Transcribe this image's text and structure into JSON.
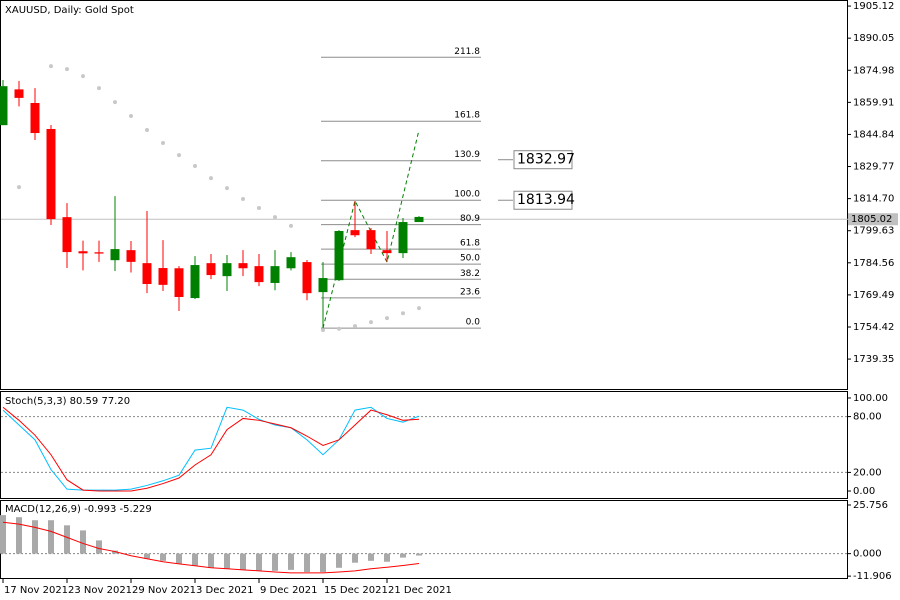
{
  "chart_data": [
    {
      "type": "candlestick",
      "title": "XAUUSD, Daily:  Gold Spot",
      "categories": [
        "17 Nov 2021",
        null,
        null,
        null,
        "23 Nov 2021",
        null,
        null,
        null,
        "29 Nov 2021",
        null,
        null,
        null,
        "3 Dec 2021",
        null,
        null,
        null,
        "9 Dec 2021",
        null,
        null,
        null,
        "15 Dec 2021",
        null,
        null,
        null,
        "21 Dec 2021",
        null,
        null
      ],
      "open": [
        1849.2,
        1866,
        1859.6,
        1847.4,
        1806,
        1790,
        1789.5,
        1785.8,
        1790.5,
        1784.4,
        1782.1,
        1782,
        1768,
        1784.4,
        1778.3,
        1784.4,
        1783,
        1775.1,
        1782,
        1784.9,
        1770.8,
        1776.4,
        1799.9,
        1799.9,
        1790.5,
        1789.1,
        1803.7
      ],
      "high": [
        1870.4,
        1870,
        1866.6,
        1849.3,
        1812.6,
        1795,
        1795,
        1815.9,
        1794.8,
        1808.9,
        1795.2,
        1783,
        1787.7,
        1788.7,
        1788.2,
        1790.5,
        1788.7,
        1790.5,
        1789.6,
        1785.9,
        1784.9,
        1799.9,
        1813.6,
        1800.9,
        1799.5,
        1805.6,
        1806.5
      ],
      "low": [
        1849.2,
        1858,
        1842.2,
        1802.3,
        1782.1,
        1781,
        1785,
        1780.7,
        1780,
        1770.3,
        1771.3,
        1761.9,
        1767.5,
        1776.9,
        1771.3,
        1778.3,
        1773.6,
        1771.7,
        1781,
        1767,
        1753.9,
        1776,
        1796.6,
        1788.7,
        1784.9,
        1786.8,
        1804.1
      ],
      "close": [
        1867.5,
        1862,
        1845.5,
        1805.1,
        1789.6,
        1789,
        1788.9,
        1791,
        1785,
        1774.6,
        1774.2,
        1768.5,
        1783.5,
        1778.8,
        1784.4,
        1782,
        1775.5,
        1783,
        1787.2,
        1770.3,
        1777.4,
        1799.5,
        1797.5,
        1791,
        1789.1,
        1803.7,
        1806.1
      ],
      "up_color": "#008000",
      "down_color": "#ff0000",
      "ylim": [
        1725.3,
        1907.5
      ],
      "yticks": [
        1905.12,
        1890.05,
        1874.98,
        1859.91,
        1844.84,
        1829.77,
        {
          "value": 1814.7,
          "label": "1814.70"
        },
        1799.63,
        1784.56,
        1769.49,
        1754.42,
        1739.35
      ],
      "current_price": 1805.02,
      "sar": {
        "color": "#c8c8c8",
        "values": [
          null,
          1820.1,
          null,
          1876.9,
          1875.5,
          1872.2,
          1866.6,
          1860,
          1853.5,
          1846.9,
          1840.8,
          1835.1,
          1830,
          1824.3,
          1819.6,
          1814.5,
          1810.3,
          1806,
          1801.9,
          null,
          1753,
          1753.6,
          1754.8,
          1756.7,
          1758.6,
          1760.9,
          1763.3
        ]
      },
      "zigzag": {
        "color": "#008000",
        "x": [
          20,
          22,
          24,
          26
        ],
        "values": [
          1753.9,
          1813.6,
          1784.9,
          1846.9
        ]
      },
      "fibonacci": {
        "low": 1753.9,
        "high": 1813.94,
        "color": "#8c8c8c",
        "levels": [
          {
            "value": 0,
            "label": "0.0"
          },
          23.6,
          38.2,
          {
            "value": 50,
            "label": "50.0"
          },
          61.8,
          80.9,
          {
            "value": 100,
            "label": "100.0"
          },
          130.9,
          161.8,
          211.8
        ]
      },
      "price_labels": [
        1832.97,
        1813.94
      ]
    },
    {
      "type": "line",
      "title": "Stoch(5,3,3) 80.59 77.20",
      "series": [
        {
          "color": "#00bfff",
          "values": [
            87,
            71,
            55,
            23,
            2,
            1,
            1,
            1,
            2,
            6,
            11,
            17,
            44,
            46,
            90,
            87,
            77,
            71,
            68,
            55,
            39,
            55,
            87,
            90,
            78,
            74,
            80.59
          ]
        },
        {
          "color": "#ff0000",
          "values": [
            90,
            76,
            60,
            39,
            12,
            1,
            0,
            0,
            0,
            3,
            8,
            14,
            28,
            39,
            66,
            78,
            76,
            72,
            68,
            59,
            49,
            55,
            71,
            87,
            82,
            76,
            77.2
          ]
        }
      ],
      "ylim": [
        -7.5,
        107.5
      ],
      "yticks": [
        {
          "value": 100,
          "label": "100.00"
        },
        {
          "value": 80,
          "label": "80.00"
        },
        {
          "value": 20,
          "label": "20.00"
        },
        {
          "value": 0,
          "label": "0.00"
        }
      ],
      "levels": [
        80,
        20
      ]
    },
    {
      "type": "bar",
      "title": "MACD(12,26,9) -0.993 -5.229",
      "values": [
        20.4,
        19.3,
        17.7,
        17.7,
        15,
        12.3,
        7,
        1.6,
        0.3,
        -2.7,
        -3.8,
        -5.4,
        -6.4,
        -7.5,
        -8,
        -8.6,
        -9.1,
        -9.1,
        -8.6,
        -9.7,
        -9.7,
        -7.5,
        -4.8,
        -3.8,
        -4.3,
        -2.1,
        -0.993
      ],
      "color": "#a9a9a9",
      "signal": {
        "color": "#ff0000",
        "values": [
          16.6,
          15.6,
          13.9,
          11.8,
          8.6,
          5.4,
          2.7,
          1.1,
          -1.1,
          -2.7,
          -4.3,
          -5.4,
          -6.4,
          -7.5,
          -8,
          -8.6,
          -9.1,
          -9.7,
          -10.2,
          -10.2,
          -10.2,
          -9.7,
          -9.1,
          -8,
          -7.2,
          -6.3,
          -5.229
        ]
      },
      "ylim": [
        -12.9,
        28.4
      ],
      "yticks": [
        25.756,
        {
          "value": 0,
          "label": "0.000"
        },
        -11.906
      ],
      "levels": [
        0
      ]
    }
  ]
}
